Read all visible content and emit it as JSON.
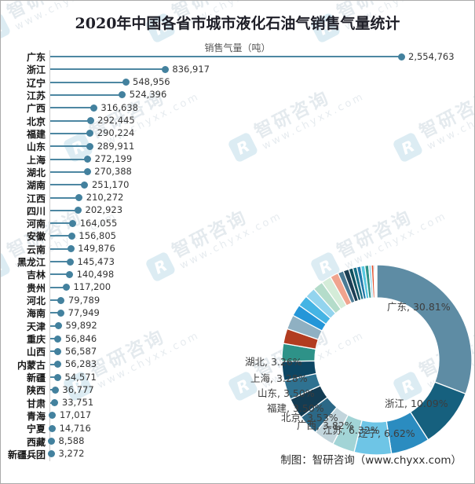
{
  "title": "2020年中国各省市城市液化石油气销售气量统计",
  "subtitle": "销售气量（吨）",
  "footer": "制图：智研咨询（www.chyxx.com）",
  "watermark": {
    "brand": "智研咨询",
    "url": "www.chyxx.com",
    "logo_glyph": "R"
  },
  "colors": {
    "bar_line": "#4d87a2",
    "bar_dot": "#43819e",
    "axis": "#cccccc",
    "title_text": "#1f1f28",
    "subtitle_text": "#565656",
    "value_text": "#333333",
    "donut_label_text": "#3d3d3d"
  },
  "chart_data": [
    {
      "type": "bar",
      "orientation": "horizontal-lollipop",
      "title": "2020年中国各省市城市液化石油气销售气量统计",
      "unit_label": "销售气量（吨）",
      "categories": [
        "广东",
        "浙江",
        "辽宁",
        "江苏",
        "广西",
        "北京",
        "福建",
        "山东",
        "上海",
        "湖北",
        "湖南",
        "江西",
        "四川",
        "河南",
        "安徽",
        "云南",
        "黑龙江",
        "吉林",
        "贵州",
        "河北",
        "海南",
        "天津",
        "重庆",
        "山西",
        "内蒙古",
        "新疆",
        "陕西",
        "甘肃",
        "青海",
        "宁夏",
        "西藏",
        "新疆兵团"
      ],
      "values": [
        2554763,
        836917,
        548956,
        524396,
        316638,
        292445,
        290224,
        289911,
        272199,
        270388,
        251170,
        210272,
        202923,
        164055,
        156805,
        149876,
        145473,
        140498,
        117200,
        79789,
        77949,
        59892,
        56846,
        56587,
        56283,
        54571,
        36777,
        33751,
        17017,
        14716,
        8588,
        3272
      ],
      "value_labels": [
        "2,554,763",
        "836,917",
        "548,956",
        "524,396",
        "316,638",
        "292,445",
        "290,224",
        "289,911",
        "272,199",
        "270,388",
        "251,170",
        "210,272",
        "202,923",
        "164,055",
        "156,805",
        "149,876",
        "145,473",
        "140,498",
        "117,200",
        "79,789",
        "77,949",
        "59,892",
        "56,846",
        "56,587",
        "56,283",
        "54,571",
        "36,777",
        "33,751",
        "17,017",
        "14,716",
        "8,588",
        "3,272"
      ],
      "xlim": [
        0,
        2554763
      ],
      "grid": false
    },
    {
      "type": "pie",
      "subtype": "donut",
      "start_angle_deg": 0,
      "direction": "clockwise",
      "slices": [
        {
          "name": "广东",
          "value": 2554763,
          "pct_label": "30.81",
          "color": "#5e8ca4"
        },
        {
          "name": "浙江",
          "value": 836917,
          "pct_label": "10.09",
          "color": "#16607e"
        },
        {
          "name": "辽宁",
          "value": 548956,
          "pct_label": "6.62",
          "color": "#2b8cc0"
        },
        {
          "name": "江苏",
          "value": 524396,
          "pct_label": "6.32",
          "color": "#6ec5e6"
        },
        {
          "name": "广西",
          "value": 316638,
          "pct_label": "3.82",
          "color": "#a2d4d6"
        },
        {
          "name": "北京",
          "value": 292445,
          "pct_label": "3.53",
          "color": "#c2d5dc"
        },
        {
          "name": "福建",
          "value": 290224,
          "pct_label": "3.50",
          "color": "#2c6886"
        },
        {
          "name": "山东",
          "value": 289911,
          "pct_label": "3.50",
          "color": "#133c53"
        },
        {
          "name": "上海",
          "value": 272199,
          "pct_label": "3.28",
          "color": "#2f7291"
        },
        {
          "name": "湖北",
          "value": 270388,
          "pct_label": "3.26",
          "color": "#0d4663"
        },
        {
          "name": "湖南",
          "value": 251170,
          "pct_label": null,
          "color": "#2e9288"
        },
        {
          "name": "江西",
          "value": 210272,
          "pct_label": null,
          "color": "#b23c20"
        },
        {
          "name": "四川",
          "value": 202923,
          "pct_label": null,
          "color": "#8fb0c2"
        },
        {
          "name": "河南",
          "value": 164055,
          "pct_label": null,
          "color": "#2496d8"
        },
        {
          "name": "安徽",
          "value": 156805,
          "pct_label": null,
          "color": "#45b4e4"
        },
        {
          "name": "云南",
          "value": 149876,
          "pct_label": null,
          "color": "#93d4ee"
        },
        {
          "name": "黑龙江",
          "value": 145473,
          "pct_label": null,
          "color": "#b4dcca"
        },
        {
          "name": "吉林",
          "value": 140498,
          "pct_label": null,
          "color": "#d4ecd8"
        },
        {
          "name": "贵州",
          "value": 117200,
          "pct_label": null,
          "color": "#f0a48e"
        },
        {
          "name": "河北",
          "value": 79789,
          "pct_label": null,
          "color": "#4a7a94"
        },
        {
          "name": "海南",
          "value": 77949,
          "pct_label": null,
          "color": "#1c3f54"
        },
        {
          "name": "天津",
          "value": 59892,
          "pct_label": null,
          "color": "#0f505e"
        },
        {
          "name": "重庆",
          "value": 56846,
          "pct_label": null,
          "color": "#177086"
        },
        {
          "name": "山西",
          "value": 56587,
          "pct_label": null,
          "color": "#2178a8"
        },
        {
          "name": "内蒙古",
          "value": 56283,
          "pct_label": null,
          "color": "#56c8e0"
        },
        {
          "name": "新疆",
          "value": 54571,
          "pct_label": null,
          "color": "#2e9288"
        },
        {
          "name": "陕西",
          "value": 36777,
          "pct_label": null,
          "color": "#9adcf0"
        },
        {
          "name": "甘肃",
          "value": 33751,
          "pct_label": null,
          "color": "#e0502e"
        },
        {
          "name": "青海",
          "value": 17017,
          "pct_label": null,
          "color": "#2d9fd8"
        },
        {
          "name": "宁夏",
          "value": 14716,
          "pct_label": null,
          "color": "#a0d8f0"
        },
        {
          "name": "西藏",
          "value": 8588,
          "pct_label": null,
          "color": "#c8e8f8"
        },
        {
          "name": "新疆兵团",
          "value": 3272,
          "pct_label": null,
          "color": "#5e8ca4"
        }
      ]
    }
  ]
}
